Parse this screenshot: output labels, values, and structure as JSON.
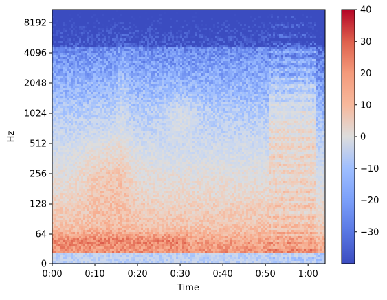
{
  "chart_data": {
    "type": "heatmap",
    "subtype": "spectrogram",
    "title": "",
    "xlabel": "Time",
    "ylabel": "Hz",
    "x_range_seconds": [
      0,
      64
    ],
    "x_tick_values": [
      0,
      10,
      20,
      30,
      40,
      50,
      60
    ],
    "x_tick_labels": [
      "0:00",
      "0:10",
      "0:20",
      "0:30",
      "0:40",
      "0:50",
      "1:00"
    ],
    "y_scale": "symlog",
    "y_range_hz": [
      0,
      11025
    ],
    "y_tick_values": [
      0,
      64,
      128,
      256,
      512,
      1024,
      2048,
      4096,
      8192
    ],
    "y_tick_labels": [
      "0",
      "64",
      "128",
      "256",
      "512",
      "1024",
      "2048",
      "4096",
      "8192"
    ],
    "colorbar": {
      "label": "",
      "range": [
        -40,
        40
      ],
      "tick_values": [
        40,
        30,
        20,
        10,
        0,
        -10,
        -20,
        -30
      ],
      "tick_labels": [
        "40",
        "30",
        "20",
        "10",
        "0",
        "−10",
        "−20",
        "−30"
      ],
      "colormap": "coolwarm"
    },
    "colormap_stops": [
      "#3b4cc0",
      "#6788ee",
      "#9abbff",
      "#c9d7f0",
      "#dddddd",
      "#f2cbb7",
      "#f7a889",
      "#e26952",
      "#b40426"
    ],
    "features": [
      {
        "region": "low band 20-250 Hz",
        "time_range_s": [
          0,
          64
        ],
        "level_db": 20
      },
      {
        "region": "voice formants 200-400 Hz",
        "time_range_s": [
          0,
          17
        ],
        "level_db": 25
      },
      {
        "region": "strong low tones 40-60 Hz",
        "time_range_s": [
          3,
          30
        ],
        "level_db": 30
      },
      {
        "region": "mid blob ~1000 Hz",
        "time_range_s": [
          25,
          35
        ],
        "level_db": 12
      },
      {
        "region": "broadband harmonic burst 200-2500 Hz",
        "time_range_s": [
          51,
          62
        ],
        "level_db": 25
      },
      {
        "region": "high band above 5 kHz",
        "time_range_s": [
          0,
          64
        ],
        "level_db": -30
      }
    ]
  }
}
